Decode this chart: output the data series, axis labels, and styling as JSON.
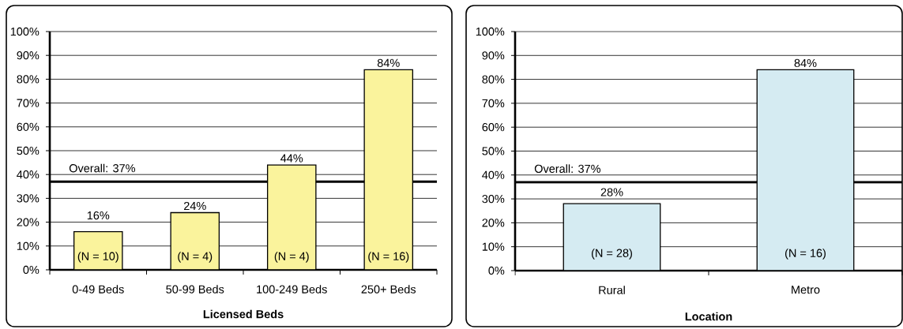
{
  "chart_data": [
    {
      "type": "bar",
      "xlabel": "Licensed Beds",
      "categories": [
        "0-49 Beds",
        "50-99 Beds",
        "100-249 Beds",
        "250+ Beds"
      ],
      "values": [
        16,
        24,
        44,
        84
      ],
      "color": "#faf39c",
      "value_labels": [
        "16%",
        "24%",
        "44%",
        "84%"
      ],
      "ylim": [
        0,
        100
      ],
      "yticks": [
        {
          "value": 0,
          "label": "0%"
        },
        {
          "value": 10,
          "label": "10%"
        },
        {
          "value": 20,
          "label": "20%"
        },
        {
          "value": 30,
          "label": "30%"
        },
        {
          "value": 40,
          "label": "40%"
        },
        {
          "value": 50,
          "label": "50%"
        },
        {
          "value": 60,
          "label": "60%"
        },
        {
          "value": 70,
          "label": "70%"
        },
        {
          "value": 80,
          "label": "80%"
        },
        {
          "value": 90,
          "label": "90%"
        },
        {
          "value": 100,
          "label": "100%"
        }
      ],
      "grid": "y",
      "ref_lines": [
        {
          "axis": "y",
          "value": 37,
          "label": "Overall: 37%",
          "color": "#000000"
        }
      ],
      "annotations": [
        "(N = 10)",
        "(N = 4)",
        "(N = 4)",
        "(N = 16)"
      ]
    },
    {
      "type": "bar",
      "xlabel": "Location",
      "categories": [
        "Rural",
        "Metro"
      ],
      "values": [
        28,
        84
      ],
      "color": "#d5ebf2",
      "value_labels": [
        "28%",
        "84%"
      ],
      "ylim": [
        0,
        100
      ],
      "yticks": [
        {
          "value": 0,
          "label": "0%"
        },
        {
          "value": 10,
          "label": "10%"
        },
        {
          "value": 20,
          "label": "20%"
        },
        {
          "value": 30,
          "label": "30%"
        },
        {
          "value": 40,
          "label": "40%"
        },
        {
          "value": 50,
          "label": "50%"
        },
        {
          "value": 60,
          "label": "60%"
        },
        {
          "value": 70,
          "label": "70%"
        },
        {
          "value": 80,
          "label": "80%"
        },
        {
          "value": 90,
          "label": "90%"
        },
        {
          "value": 100,
          "label": "100%"
        }
      ],
      "grid": "y",
      "ref_lines": [
        {
          "axis": "y",
          "value": 37,
          "label": "Overall: 37%",
          "color": "#000000"
        }
      ],
      "annotations": [
        "(N = 28)",
        "(N = 16)"
      ]
    }
  ]
}
